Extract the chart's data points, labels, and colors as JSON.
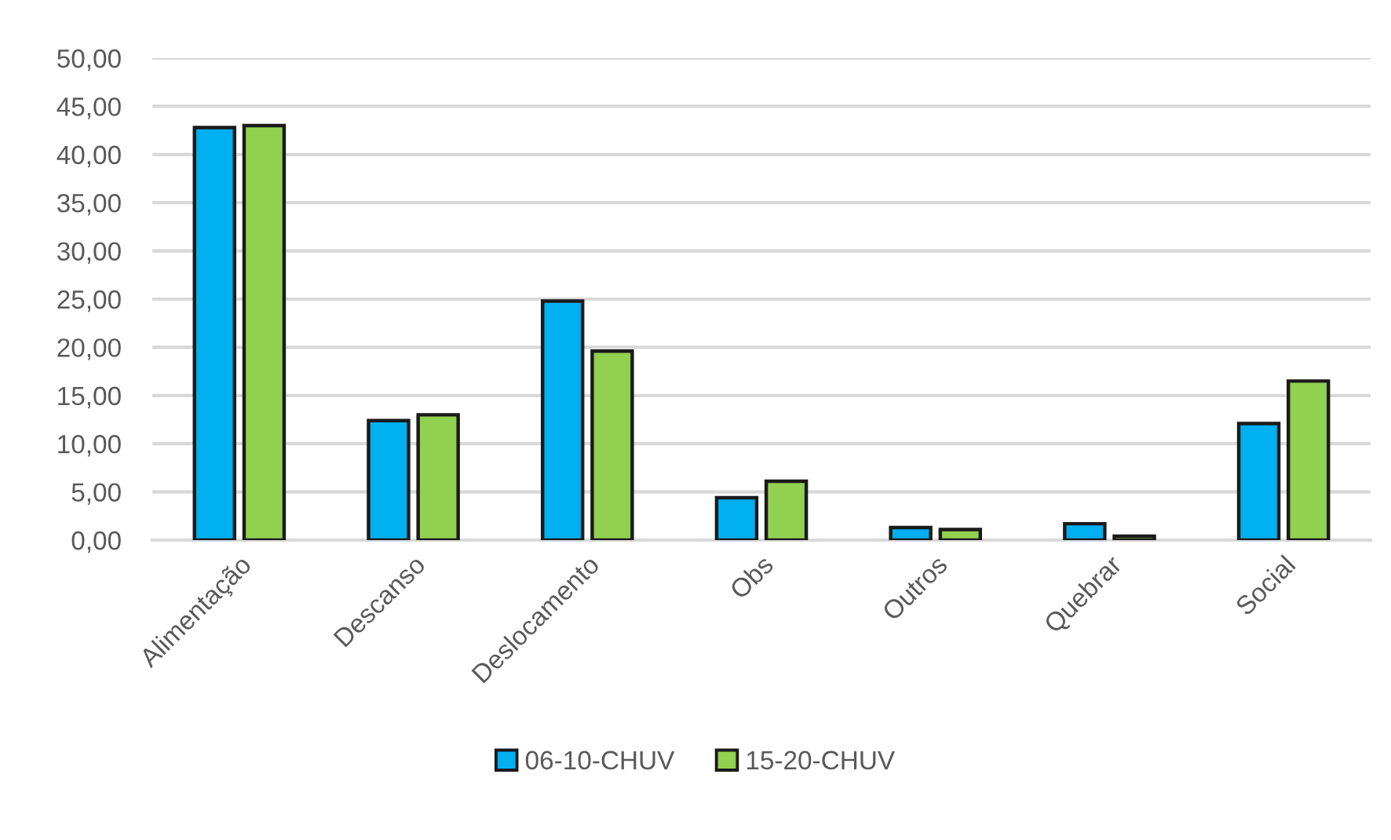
{
  "chart_data": {
    "type": "bar",
    "categories": [
      "Alimentação",
      "Descanso",
      "Deslocamento",
      "Obs",
      "Outros",
      "Quebrar",
      "Social"
    ],
    "series": [
      {
        "name": "06-10-CHUV",
        "color": "#00b0f0",
        "values": [
          42.8,
          12.4,
          24.8,
          4.4,
          1.3,
          1.7,
          12.1
        ]
      },
      {
        "name": "15-20-CHUV",
        "color": "#92d050",
        "values": [
          43.0,
          13.0,
          19.6,
          6.1,
          1.1,
          0.4,
          16.5
        ]
      }
    ],
    "ylim": [
      0,
      50
    ],
    "yticks": [
      {
        "value": 0,
        "label": "0,00"
      },
      {
        "value": 5,
        "label": "5,00"
      },
      {
        "value": 10,
        "label": "10,00"
      },
      {
        "value": 15,
        "label": "15,00"
      },
      {
        "value": 20,
        "label": "20,00"
      },
      {
        "value": 25,
        "label": "25,00"
      },
      {
        "value": 30,
        "label": "30,00"
      },
      {
        "value": 35,
        "label": "35,00"
      },
      {
        "value": 40,
        "label": "40,00"
      },
      {
        "value": 45,
        "label": "45,00"
      },
      {
        "value": 50,
        "label": "50,00"
      }
    ],
    "grid": "y",
    "legend": "bottom"
  }
}
